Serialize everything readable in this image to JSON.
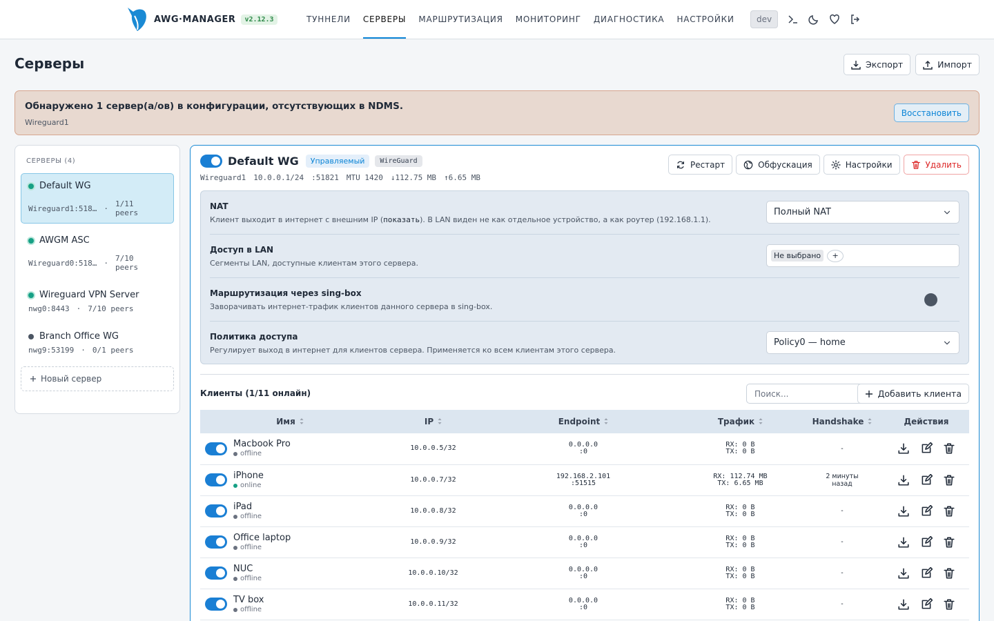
{
  "header": {
    "logo": "AWG·MANAGER",
    "version": "v2.12.3",
    "nav": [
      "ТУННЕЛИ",
      "СЕРВЕРЫ",
      "МАРШРУТИЗАЦИЯ",
      "МОНИТОРИНГ",
      "ДИАГНОСТИКА",
      "НАСТРОЙКИ"
    ],
    "active_index": 1,
    "env": "dev"
  },
  "page": {
    "title": "Серверы",
    "export": "Экспорт",
    "import": "Импорт"
  },
  "alert": {
    "title": "Обнаружено 1 сервер(а/ов) в конфигурации, отсутствующих в NDMS.",
    "detail": "Wireguard1",
    "action": "Восстановить"
  },
  "sidebar": {
    "heading": "СЕРВЕРЫ (4)",
    "separator": "·",
    "servers": [
      {
        "name": "Default WG",
        "address": "Wireguard1:518…",
        "peers": "1/11 peers",
        "running": true,
        "selected": true
      },
      {
        "name": "AWGM ASC",
        "address": "Wireguard0:518…",
        "peers": "7/10 peers",
        "running": true,
        "selected": false
      },
      {
        "name": "Wireguard VPN Server",
        "address": "nwg0:8443",
        "peers": "7/10 peers",
        "running": true,
        "selected": false
      },
      {
        "name": "Branch Office WG",
        "address": "nwg9:53199",
        "peers": "0/1 peers",
        "running": false,
        "selected": false
      }
    ],
    "new_server": "Новый сервер"
  },
  "server": {
    "enabled": true,
    "name": "Default WG",
    "badges": [
      "Управляемый",
      "WireGuard"
    ],
    "actions": [
      "Рестарт",
      "Обфускация",
      "Настройки",
      "Удалить"
    ],
    "info": [
      "Wireguard1",
      "10.0.0.1/24",
      ":51821",
      "MTU 1420",
      "↓112.75 MB",
      "↑6.65 MB"
    ],
    "settings": {
      "nat": {
        "title": "NAT",
        "desc_before": "Клиент выходит в интернет с внешним IP (",
        "link": "показать",
        "desc_after": "). В LAN виден не как отдельное устройство, а как роутер (192.168.1.1).",
        "value": "Полный NAT"
      },
      "lan": {
        "title": "Доступ в LAN",
        "desc": "Сегменты LAN, доступные клиентам этого сервера.",
        "chip": "Не выбрано",
        "add": "+"
      },
      "singbox": {
        "title": "Маршрутизация через sing-box",
        "desc": "Заворачивать интернет-трафик клиентов данного сервера в sing-box.",
        "enabled": false
      },
      "policy": {
        "title": "Политика доступа",
        "desc": "Регулирует выход в интернет для клиентов сервера. Применяется ко всем клиентам этого сервера.",
        "value": "Policy0 — home"
      }
    }
  },
  "clients": {
    "title": "Клиенты (1/11 онлайн)",
    "search_placeholder": "Поиск...",
    "add": "Добавить клиента",
    "columns": [
      "Имя",
      "IP",
      "Endpoint",
      "Трафик",
      "Handshake",
      "Действия"
    ],
    "rows": [
      {
        "enabled": true,
        "name": "Macbook Pro",
        "status": "offline",
        "ip": "10.0.0.5/32",
        "endpoint": [
          "0.0.0.0",
          ":0"
        ],
        "traffic": [
          "RX: 0 B",
          "TX: 0 B"
        ],
        "handshake": "-"
      },
      {
        "enabled": true,
        "name": "iPhone",
        "status": "online",
        "ip": "10.0.0.7/32",
        "endpoint": [
          "192.168.2.101",
          ":51515"
        ],
        "traffic": [
          "RX: 112.74 MB",
          "TX: 6.65 MB"
        ],
        "handshake": "2 минуты назад"
      },
      {
        "enabled": true,
        "name": "iPad",
        "status": "offline",
        "ip": "10.0.0.8/32",
        "endpoint": [
          "0.0.0.0",
          ":0"
        ],
        "traffic": [
          "RX: 0 B",
          "TX: 0 B"
        ],
        "handshake": "-"
      },
      {
        "enabled": true,
        "name": "Office laptop",
        "status": "offline",
        "ip": "10.0.0.9/32",
        "endpoint": [
          "0.0.0.0",
          ":0"
        ],
        "traffic": [
          "RX: 0 B",
          "TX: 0 B"
        ],
        "handshake": "-"
      },
      {
        "enabled": true,
        "name": "NUC",
        "status": "offline",
        "ip": "10.0.0.10/32",
        "endpoint": [
          "0.0.0.0",
          ":0"
        ],
        "traffic": [
          "RX: 0 B",
          "TX: 0 B"
        ],
        "handshake": "-"
      },
      {
        "enabled": true,
        "name": "TV box",
        "status": "offline",
        "ip": "10.0.0.11/32",
        "endpoint": [
          "0.0.0.0",
          ":0"
        ],
        "traffic": [
          "RX: 0 B",
          "TX: 0 B"
        ],
        "handshake": "-"
      }
    ]
  }
}
